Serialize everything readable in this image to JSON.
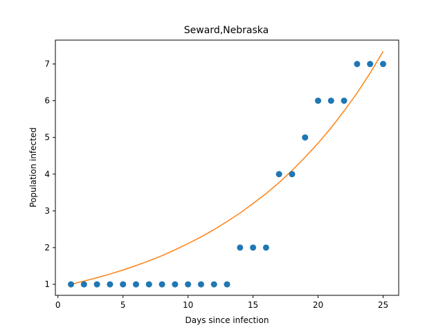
{
  "chart_data": {
    "type": "scatter",
    "title": "Seward,Nebraska",
    "xlabel": "Days since infection",
    "ylabel": "Population infected",
    "xlim": [
      -0.2,
      26.2
    ],
    "ylim": [
      0.7,
      7.65
    ],
    "xticks": [
      0,
      5,
      10,
      15,
      20,
      25
    ],
    "yticks": [
      1,
      2,
      3,
      4,
      5,
      6,
      7
    ],
    "grid": false,
    "series": [
      {
        "type": "scatter",
        "color": "#1f77b4",
        "x": [
          1,
          2,
          3,
          4,
          5,
          6,
          7,
          8,
          9,
          10,
          11,
          12,
          13,
          14,
          15,
          16,
          17,
          18,
          19,
          20,
          21,
          22,
          23,
          24,
          25
        ],
        "y": [
          1,
          1,
          1,
          1,
          1,
          1,
          1,
          1,
          1,
          1,
          1,
          1,
          1,
          2,
          2,
          2,
          4,
          4,
          5,
          6,
          6,
          6,
          7,
          7,
          7
        ]
      },
      {
        "type": "line",
        "color": "#ff7f0e",
        "x": [
          1,
          2,
          3,
          4,
          5,
          6,
          7,
          8,
          9,
          10,
          11,
          12,
          13,
          14,
          15,
          16,
          17,
          18,
          19,
          20,
          21,
          22,
          23,
          24,
          25
        ],
        "y": [
          1.0,
          1.09,
          1.18,
          1.28,
          1.39,
          1.51,
          1.64,
          1.78,
          1.94,
          2.11,
          2.29,
          2.49,
          2.71,
          2.94,
          3.2,
          3.47,
          3.77,
          4.1,
          4.46,
          4.84,
          5.26,
          5.72,
          6.21,
          6.75,
          7.34
        ]
      }
    ]
  }
}
